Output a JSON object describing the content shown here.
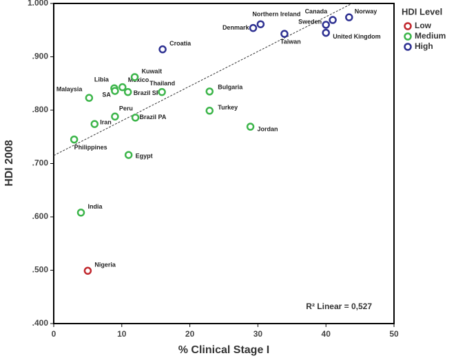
{
  "chart_data": {
    "type": "scatter",
    "x_label": "% Clinical Stage I",
    "y_label": "HDI 2008",
    "xlim": [
      0,
      50
    ],
    "ylim": [
      0.4,
      1.0
    ],
    "xticks": [
      0,
      10,
      20,
      30,
      40,
      50
    ],
    "yticks": [
      {
        "value": 0.4,
        "label": ".400"
      },
      {
        "value": 0.5,
        "label": ".500"
      },
      {
        "value": 0.6,
        "label": ".600"
      },
      {
        "value": 0.7,
        "label": ".700"
      },
      {
        "value": 0.8,
        "label": ".800"
      },
      {
        "value": 0.9,
        "label": ".900"
      },
      {
        "value": 1.0,
        "label": "1.000"
      }
    ],
    "legend_title": "HDI Level",
    "series": [
      {
        "name": "Low",
        "color": "#c1272d",
        "labels": [
          "Nigeria"
        ],
        "x": [
          5
        ],
        "values": [
          0.499
        ]
      },
      {
        "name": "Medium",
        "color": "#3cb54a",
        "labels": [
          "India",
          "Philippines",
          "Egypt",
          "Iran",
          "Peru",
          "Brazil PA",
          "Malaysia",
          "Libia",
          "SA",
          "Mexico",
          "Brazil SP",
          "Kuwait",
          "Thailand",
          "Bulgaria",
          "Turkey",
          "Jordan"
        ],
        "x": [
          4,
          3,
          11,
          6,
          9,
          12,
          5.2,
          8.9,
          9,
          10.1,
          10.9,
          11.9,
          15.9,
          22.9,
          22.9,
          28.9
        ],
        "values": [
          0.608,
          0.745,
          0.716,
          0.774,
          0.788,
          0.786,
          0.823,
          0.841,
          0.836,
          0.843,
          0.834,
          0.862,
          0.834,
          0.835,
          0.799,
          0.769
        ]
      },
      {
        "name": "High",
        "color": "#2e3192",
        "labels": [
          "Croatia",
          "Denmark",
          "Northern Ireland",
          "Taiwan",
          "United Kingdom",
          "Sweden",
          "Canada",
          "Norway"
        ],
        "x": [
          16,
          29.3,
          30.4,
          33.9,
          40,
          40,
          41,
          43.4
        ],
        "values": [
          0.914,
          0.954,
          0.961,
          0.943,
          0.945,
          0.96,
          0.969,
          0.974
        ]
      }
    ],
    "trendline": {
      "intercept": 0.715,
      "slope": 0.0065
    },
    "annotation": "R² Linear = 0,527"
  }
}
